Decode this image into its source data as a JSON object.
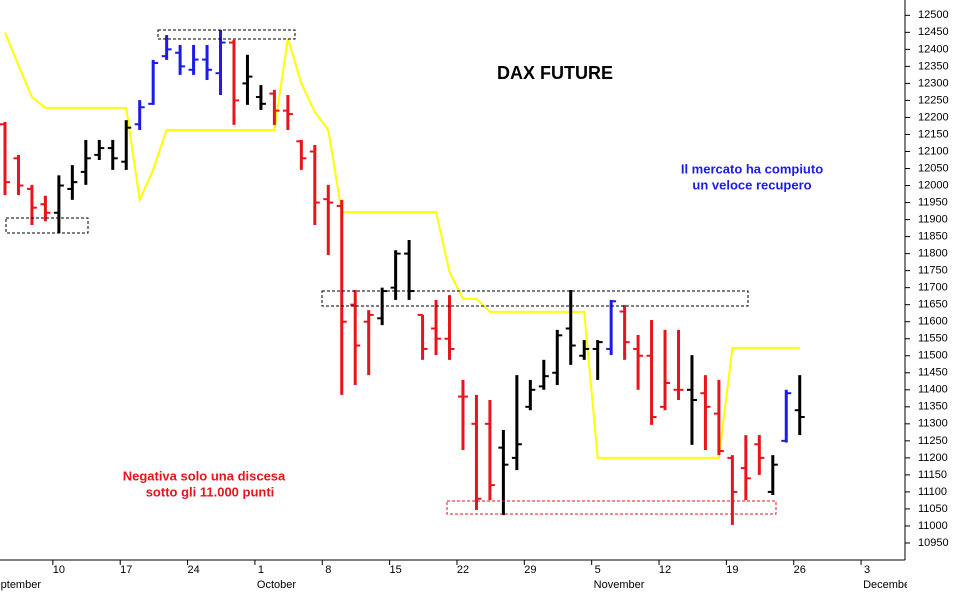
{
  "chart_data": {
    "type": "ohlc",
    "title": "DAX FUTURE",
    "notes": [
      [
        "Il mercato ha compiuto",
        "un veloce recupero"
      ],
      [
        "Negativa solo una discesa",
        "sotto gli 11.000 punti"
      ]
    ],
    "categories": [
      null,
      null,
      null,
      null,
      "10",
      null,
      null,
      null,
      null,
      "17",
      null,
      null,
      null,
      null,
      "24",
      null,
      null,
      null,
      null,
      "1",
      null,
      null,
      null,
      null,
      "8",
      null,
      null,
      null,
      null,
      "15",
      null,
      null,
      null,
      null,
      "22",
      null,
      null,
      null,
      null,
      "29",
      null,
      null,
      null,
      null,
      "5",
      null,
      null,
      null,
      null,
      "12",
      null,
      null,
      null,
      null,
      "19",
      null,
      null,
      null,
      null,
      "26",
      null,
      null,
      null,
      null,
      "3",
      null,
      null
    ],
    "category_months": [
      "September",
      null,
      null,
      null,
      null,
      null,
      null,
      null,
      null,
      null,
      null,
      null,
      null,
      null,
      null,
      null,
      null,
      null,
      null,
      "October",
      null,
      null,
      null,
      null,
      null,
      null,
      null,
      null,
      null,
      null,
      null,
      null,
      null,
      null,
      null,
      null,
      null,
      null,
      null,
      null,
      null,
      null,
      null,
      null,
      "November",
      null,
      null,
      null,
      null,
      null,
      null,
      null,
      null,
      null,
      null,
      null,
      null,
      null,
      null,
      null,
      null,
      null,
      null,
      null,
      "December",
      null,
      null
    ],
    "bars": {
      "open": [
        12180,
        12080,
        11990,
        11945,
        11920,
        11990,
        12040,
        12090,
        12110,
        12070,
        12180,
        12240,
        12380,
        12390,
        12340,
        12370,
        12330,
        12420,
        12300,
        12260,
        12270,
        12220,
        12130,
        12100,
        11960,
        11940,
        11650,
        11600,
        11610,
        11700,
        11800,
        11620,
        11580,
        11550,
        11380,
        11300,
        11300,
        11230,
        11200,
        11350,
        11410,
        11450,
        11580,
        11500,
        11520,
        11520,
        11630,
        11520,
        11500,
        11350,
        11400,
        11400,
        11390,
        11330,
        11200,
        11170,
        11240,
        11100,
        11250,
        11340,
        null,
        null,
        null,
        null,
        null,
        null,
        null
      ],
      "high": [
        12187,
        12090,
        12002,
        11970,
        12030,
        12060,
        12134,
        12134,
        12134,
        12192,
        12251,
        12369,
        12442,
        12413,
        12413,
        12413,
        12457,
        12428,
        12384,
        12295,
        12281,
        12266,
        12134,
        12119,
        12002,
        11958,
        11693,
        11634,
        11700,
        11810,
        11840,
        11620,
        11664,
        11678,
        11429,
        11385,
        11370,
        11282,
        11443,
        11429,
        11488,
        11576,
        11693,
        11546,
        11546,
        11664,
        11649,
        11561,
        11605,
        11576,
        11576,
        11502,
        11443,
        11429,
        11208,
        11267,
        11267,
        11208,
        11400,
        11443,
        null,
        null,
        null,
        null,
        null,
        null,
        null
      ],
      "low": [
        11972,
        11972,
        11884,
        11895,
        11860,
        11958,
        12002,
        12075,
        12046,
        12046,
        12163,
        12237,
        12369,
        12325,
        12325,
        12310,
        12266,
        12178,
        12237,
        12222,
        12178,
        12163,
        12046,
        11884,
        11796,
        11385,
        11414,
        11443,
        11590,
        11664,
        11664,
        11488,
        11502,
        11488,
        11223,
        11047,
        11076,
        11032,
        11164,
        11340,
        11400,
        11414,
        11473,
        11488,
        11429,
        11502,
        11488,
        11400,
        11297,
        11340,
        11370,
        11238,
        11223,
        11208,
        11003,
        11076,
        11150,
        11091,
        11245,
        11267,
        null,
        null,
        null,
        null,
        null,
        null,
        null
      ],
      "close": [
        12010,
        12000,
        11935,
        11920,
        12000,
        12010,
        12080,
        12110,
        12080,
        12170,
        12230,
        12360,
        12400,
        12350,
        12370,
        12340,
        12420,
        12250,
        12320,
        12240,
        12220,
        12210,
        12080,
        11950,
        11950,
        11600,
        11530,
        11620,
        11690,
        11800,
        11690,
        11520,
        11550,
        11520,
        11380,
        11080,
        11120,
        11180,
        11240,
        11400,
        11440,
        11560,
        11530,
        11520,
        11540,
        11660,
        11540,
        11500,
        11320,
        11420,
        11400,
        11370,
        11350,
        11220,
        11100,
        11140,
        11200,
        11180,
        11390,
        11320,
        null,
        null,
        null,
        null,
        null,
        null,
        null
      ],
      "colors": [
        "#e8141c",
        "#e8141c",
        "#e8141c",
        "#e8141c",
        "#000000",
        "#000000",
        "#000000",
        "#000000",
        "#000000",
        "#000000",
        "#1c1ce6",
        "#1c1ce6",
        "#1c1ce6",
        "#1c1ce6",
        "#1c1ce6",
        "#1c1ce6",
        "#1c1ce6",
        "#e8141c",
        "#000000",
        "#000000",
        "#e8141c",
        "#e8141c",
        "#e8141c",
        "#e8141c",
        "#e8141c",
        "#e8141c",
        "#e8141c",
        "#e8141c",
        "#000000",
        "#000000",
        "#000000",
        "#e8141c",
        "#e8141c",
        "#e8141c",
        "#e8141c",
        "#e8141c",
        "#e8141c",
        "#000000",
        "#000000",
        "#000000",
        "#000000",
        "#000000",
        "#000000",
        "#000000",
        "#000000",
        "#1c1ce6",
        "#e8141c",
        "#e8141c",
        "#e8141c",
        "#e8141c",
        "#e8141c",
        "#000000",
        "#e8141c",
        "#e8141c",
        "#e8141c",
        "#e8141c",
        "#e8141c",
        "#000000",
        "#1c1ce6",
        "#000000",
        null,
        null,
        null,
        null,
        null,
        null,
        null
      ]
    },
    "line": {
      "color": "#ffff00",
      "values": [
        12449,
        12353,
        12260,
        12228,
        12228,
        12228,
        12228,
        12228,
        12228,
        12228,
        11958,
        12046,
        12163,
        12163,
        12163,
        12163,
        12163,
        12163,
        12163,
        12163,
        12163,
        12433,
        12300,
        12216,
        12163,
        11922,
        11922,
        11922,
        11922,
        11922,
        11922,
        11922,
        11922,
        11746,
        11667,
        11667,
        11629,
        11629,
        11629,
        11629,
        11629,
        11629,
        11629,
        11629,
        11200,
        11200,
        11200,
        11200,
        11200,
        11200,
        11200,
        11200,
        11200,
        11200,
        11523,
        11523,
        11523,
        11523,
        11523,
        11523,
        null,
        null,
        null,
        null,
        null,
        null,
        null
      ]
    },
    "ylim": [
      10900,
      12545
    ],
    "yticks": [
      10950,
      11000,
      11050,
      11100,
      11150,
      11200,
      11250,
      11300,
      11350,
      11400,
      11450,
      11500,
      11550,
      11600,
      11650,
      11700,
      11750,
      11800,
      11850,
      11900,
      11950,
      12000,
      12050,
      12100,
      12150,
      12200,
      12250,
      12300,
      12350,
      12400,
      12450,
      12500
    ]
  }
}
